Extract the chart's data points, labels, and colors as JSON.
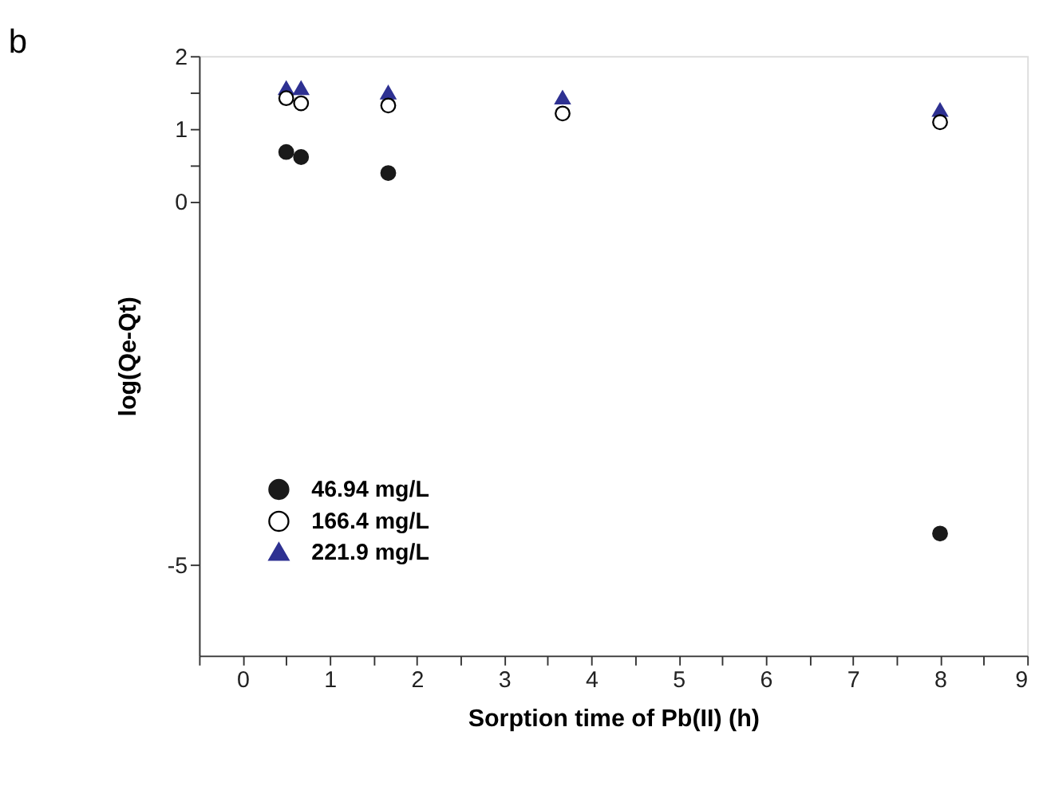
{
  "chart_data": {
    "type": "scatter",
    "title": "b",
    "ylabel": "log(Qe-Qt)",
    "xlabel": "Sorption time of Pb(II) (h)",
    "xlim": [
      -0.5,
      9
    ],
    "xticks": [
      {
        "value": -0.5,
        "label": null
      },
      0,
      {
        "value": 0.5,
        "label": null
      },
      1,
      {
        "value": 1.5,
        "label": null
      },
      2,
      {
        "value": 2.5,
        "label": null
      },
      3,
      {
        "value": 3.5,
        "label": null
      },
      4,
      {
        "value": 4.5,
        "label": null
      },
      5,
      {
        "value": 5.5,
        "label": null
      },
      6,
      {
        "value": 6.5,
        "label": null
      },
      7,
      {
        "value": 7.5,
        "label": null
      },
      8,
      {
        "value": 8.5,
        "label": null
      },
      9
    ],
    "ylim": [
      -6.25,
      2
    ],
    "yticks": [
      -5,
      0,
      {
        "value": 0.5,
        "label": null
      },
      1,
      {
        "value": 1.5,
        "label": null
      },
      2
    ],
    "grid": false,
    "legend": "left",
    "series": [
      {
        "name": "46.94 mg/L",
        "color": "#1a1a1a",
        "marker": "circle",
        "x": [
          0.5,
          0.67,
          1.67,
          8
        ],
        "values": [
          0.68,
          0.61,
          0.39,
          -4.57
        ]
      },
      {
        "name": "166.4 mg/L",
        "color": "#ffffff",
        "marker": "circle",
        "x": [
          0.5,
          0.67,
          1.67,
          3.67,
          8
        ],
        "values": [
          1.42,
          1.35,
          1.32,
          1.21,
          1.09
        ]
      },
      {
        "name": "221.9 mg/L",
        "color": "#2e3192",
        "marker": "triangle",
        "x": [
          0.5,
          0.67,
          1.67,
          3.67,
          8
        ],
        "values": [
          1.56,
          1.56,
          1.5,
          1.43,
          1.26
        ]
      }
    ]
  }
}
